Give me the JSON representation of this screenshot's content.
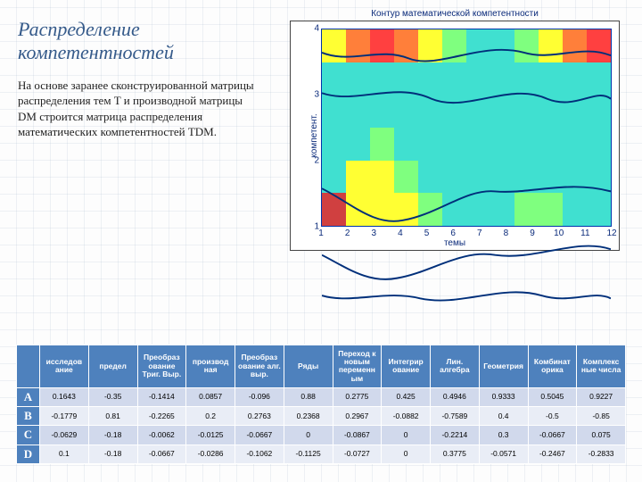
{
  "title": "Распределение компетентностей",
  "body": "На основе заранее сконструированной матрицы распределения тем T и производной матрицы DM строится матрица распределения математических компетентностей TDM.",
  "chart": {
    "title": "Контур математической компетентности",
    "y_label": "компетент.",
    "x_label": "темы",
    "type": "contour-heatmap",
    "x_ticks": [
      "1",
      "2",
      "3",
      "4",
      "5",
      "6",
      "7",
      "8",
      "9",
      "10",
      "11",
      "12"
    ],
    "y_ticks": [
      "1",
      "2",
      "3",
      "4"
    ],
    "xlim": [
      1,
      12
    ],
    "ylim": [
      1,
      4
    ],
    "grid_color": "#0033aa",
    "background_color": "#ffffff",
    "field": [
      [
        "#ffff33",
        "#ff7f3a",
        "#ff4040",
        "#ff7f3a",
        "#ffff33",
        "#7fff7f",
        "#40e0d0",
        "#40e0d0",
        "#7fff7f",
        "#ffff33",
        "#ff7f3a",
        "#ff4040"
      ],
      [
        "#40e0d0",
        "#40e0d0",
        "#40e0d0",
        "#40e0d0",
        "#40e0d0",
        "#40e0d0",
        "#40e0d0",
        "#40e0d0",
        "#40e0d0",
        "#40e0d0",
        "#40e0d0",
        "#40e0d0"
      ],
      [
        "#40e0d0",
        "#40e0d0",
        "#40e0d0",
        "#40e0d0",
        "#40e0d0",
        "#40e0d0",
        "#40e0d0",
        "#40e0d0",
        "#40e0d0",
        "#40e0d0",
        "#40e0d0",
        "#40e0d0"
      ],
      [
        "#40e0d0",
        "#40e0d0",
        "#7fff7f",
        "#40e0d0",
        "#40e0d0",
        "#40e0d0",
        "#40e0d0",
        "#40e0d0",
        "#40e0d0",
        "#40e0d0",
        "#40e0d0",
        "#40e0d0"
      ],
      [
        "#40e0d0",
        "#ffff33",
        "#ffff33",
        "#7fff7f",
        "#40e0d0",
        "#40e0d0",
        "#40e0d0",
        "#40e0d0",
        "#40e0d0",
        "#40e0d0",
        "#40e0d0",
        "#40e0d0"
      ],
      [
        "#d04040",
        "#ffff33",
        "#ffff33",
        "#ffff33",
        "#7fff7f",
        "#40e0d0",
        "#40e0d0",
        "#40e0d0",
        "#7fff7f",
        "#7fff7f",
        "#40e0d0",
        "#40e0d0"
      ]
    ],
    "contour_color": "#002f7a",
    "title_fontsize": 10,
    "label_fontsize": 10
  },
  "table": {
    "columns": [
      "",
      "исследов ание",
      "предел",
      "Преобраз ование Триг. Выр.",
      "производ ная",
      "Преобраз ование алг. выр.",
      "Ряды",
      "Переход к новым переменн ым",
      "Интегрир ование",
      "Лин. алгебра",
      "Геометрия",
      "Комбинат орика",
      "Комплекс ные числа"
    ],
    "rows": [
      [
        "A",
        "0.1643",
        "-0.35",
        "-0.1414",
        "0.0857",
        "-0.096",
        "0.88",
        "0.2775",
        "0.425",
        "0.4946",
        "0.9333",
        "0.5045",
        "0.9227"
      ],
      [
        "B",
        "-0.1779",
        "0.81",
        "-0.2265",
        "0.2",
        "0.2763",
        "0.2368",
        "0.2967",
        "-0.0882",
        "-0.7589",
        "0.4",
        "-0.5",
        "-0.85"
      ],
      [
        "C",
        "-0.0629",
        "-0.18",
        "-0.0062",
        "-0.0125",
        "-0.0667",
        "0",
        "-0.0867",
        "0",
        "-0.2214",
        "0.3",
        "-0.0667",
        "0.075"
      ],
      [
        "D",
        "0.1",
        "-0.18",
        "-0.0667",
        "-0.0286",
        "-0.1062",
        "-0.1125",
        "-0.0727",
        "0",
        "0.3775",
        "-0.0571",
        "-0.2467",
        "-0.2833"
      ]
    ],
    "header_bg": "#4e81bd",
    "header_color": "#ffffff",
    "row_bg_odd": "#d1d9ec",
    "row_bg_even": "#e9edf6"
  }
}
